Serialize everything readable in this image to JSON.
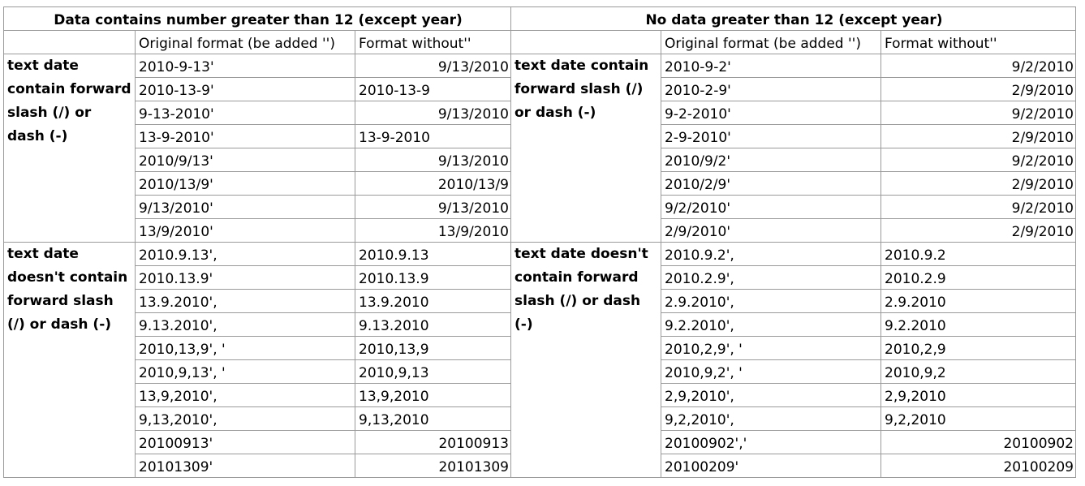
{
  "headers": {
    "left": "Data contains number greater than 12 (except year)",
    "right": "No data greater than 12 (except year)"
  },
  "subheaders": {
    "original": "Original format (be added '')",
    "without": "Format without''"
  },
  "left": {
    "cat1": "text date contain forward slash (/) or dash (-)",
    "cat2": "text date doesn't contain forward slash (/) or dash (-)",
    "rows": [
      [
        "2010-9-13'",
        "9/13/2010"
      ],
      [
        "2010-13-9'",
        "2010-13-9"
      ],
      [
        "9-13-2010'",
        "9/13/2010"
      ],
      [
        "13-9-2010'",
        "13-9-2010"
      ],
      [
        "2010/9/13'",
        "9/13/2010"
      ],
      [
        "2010/13/9'",
        "2010/13/9"
      ],
      [
        "9/13/2010'",
        "9/13/2010"
      ],
      [
        "13/9/2010'",
        "13/9/2010"
      ],
      [
        "2010.9.13',",
        "2010.9.13"
      ],
      [
        "2010.13.9'",
        "2010.13.9"
      ],
      [
        "13.9.2010',",
        "13.9.2010"
      ],
      [
        "9.13.2010',",
        "9.13.2010"
      ],
      [
        "2010,13,9', '",
        "2010,13,9"
      ],
      [
        "2010,9,13', '",
        "2010,9,13"
      ],
      [
        "13,9,2010',",
        "13,9,2010"
      ],
      [
        "9,13,2010',",
        "9,13,2010"
      ],
      [
        "20100913'",
        "20100913"
      ],
      [
        "20101309'",
        "20101309"
      ]
    ]
  },
  "right": {
    "cat1": "text date contain forward slash (/) or dash (-)",
    "cat2": "text date doesn't contain forward slash (/) or dash (-)",
    "rows": [
      [
        "2010-9-2'",
        "9/2/2010"
      ],
      [
        "2010-2-9'",
        "2/9/2010"
      ],
      [
        "9-2-2010'",
        "9/2/2010"
      ],
      [
        "2-9-2010'",
        "2/9/2010"
      ],
      [
        "2010/9/2'",
        "9/2/2010"
      ],
      [
        "2010/2/9'",
        "2/9/2010"
      ],
      [
        "9/2/2010'",
        "9/2/2010"
      ],
      [
        "2/9/2010'",
        "2/9/2010"
      ],
      [
        "2010.9.2',",
        "2010.9.2"
      ],
      [
        "2010.2.9',",
        "2010.2.9"
      ],
      [
        "2.9.2010',",
        "2.9.2010"
      ],
      [
        "9.2.2010',",
        "9.2.2010"
      ],
      [
        "2010,2,9', '",
        "2010,2,9"
      ],
      [
        "2010,9,2', '",
        "2010,9,2"
      ],
      [
        "2,9,2010',",
        "2,9,2010"
      ],
      [
        "9,2,2010',",
        "9,2,2010"
      ],
      [
        "20100902','",
        "20100902"
      ],
      [
        "20100209'",
        "20100209"
      ]
    ]
  }
}
